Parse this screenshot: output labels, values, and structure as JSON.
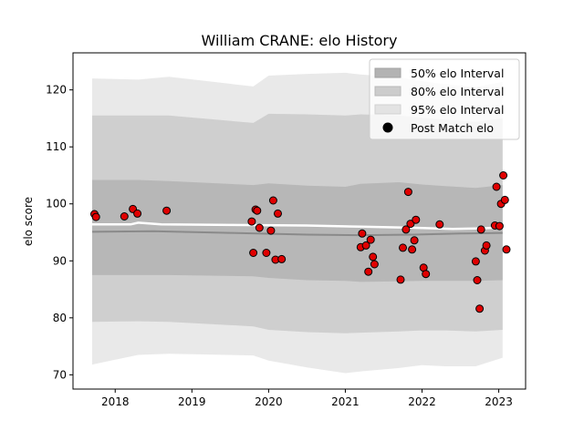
{
  "chart_data": {
    "type": "scatter",
    "title": "William CRANE: elo History",
    "xlabel": "",
    "ylabel": "elo score",
    "xlim": [
      2017.45,
      2023.35
    ],
    "ylim": [
      67.5,
      126.5
    ],
    "x_ticks": [
      2018,
      2019,
      2020,
      2021,
      2022,
      2023
    ],
    "y_ticks": [
      70,
      80,
      90,
      100,
      110,
      120
    ],
    "grid": false,
    "legend_position": "top-right",
    "legend": [
      {
        "label": "50% elo Interval",
        "color": "#b3b3b3"
      },
      {
        "label": "80% elo Interval",
        "color": "#cccccc"
      },
      {
        "label": "95% elo Interval",
        "color": "#e3e3e3"
      },
      {
        "label": "Post Match elo",
        "color": "#000000"
      }
    ],
    "bands": {
      "x": [
        2017.7,
        2018.3,
        2018.7,
        2019.8,
        2020.0,
        2020.5,
        2021.0,
        2021.2,
        2021.7,
        2022.0,
        2022.3,
        2022.7,
        2023.05
      ],
      "p95_upper": [
        122.0,
        121.8,
        122.3,
        120.6,
        122.5,
        122.8,
        123.0,
        122.7,
        122.2,
        121.5,
        121.0,
        120.5,
        121.4
      ],
      "p80_upper": [
        115.5,
        115.5,
        115.5,
        114.2,
        115.8,
        115.7,
        115.5,
        115.7,
        115.5,
        115.1,
        114.8,
        114.4,
        115.0
      ],
      "p50_upper": [
        104.2,
        104.2,
        104.0,
        103.3,
        103.6,
        103.2,
        103.0,
        103.5,
        103.8,
        103.4,
        103.1,
        102.8,
        103.3
      ],
      "p50_lower": [
        87.5,
        87.5,
        87.5,
        87.3,
        87.0,
        86.6,
        86.5,
        86.3,
        86.4,
        86.5,
        86.5,
        86.5,
        86.6
      ],
      "p80_lower": [
        79.3,
        79.4,
        79.3,
        78.5,
        77.9,
        77.5,
        77.3,
        77.4,
        77.6,
        77.8,
        77.8,
        77.6,
        77.9
      ],
      "p95_lower": [
        71.8,
        73.5,
        73.7,
        73.4,
        72.5,
        71.3,
        70.3,
        70.6,
        71.2,
        71.7,
        71.5,
        71.5,
        73.0
      ]
    },
    "median_line": {
      "x": [
        2017.7,
        2018.5,
        2019.5,
        2020.5,
        2021.2,
        2021.9,
        2022.5,
        2023.05
      ],
      "y": [
        95.1,
        95.2,
        94.9,
        94.6,
        94.5,
        94.6,
        94.8,
        94.9
      ]
    },
    "post_match_line": {
      "x": [
        2017.7,
        2018.2,
        2018.3,
        2018.6,
        2019.5,
        2020.5,
        2021.2,
        2021.9,
        2022.4,
        2022.8,
        2023.05
      ],
      "y": [
        96.4,
        96.4,
        96.7,
        96.4,
        96.3,
        96.2,
        96.0,
        95.8,
        95.6,
        95.7,
        95.9
      ]
    },
    "points": {
      "x": [
        2017.73,
        2017.75,
        2018.12,
        2018.23,
        2018.29,
        2018.67,
        2019.78,
        2019.8,
        2019.83,
        2019.85,
        2019.88,
        2019.97,
        2020.03,
        2020.06,
        2020.09,
        2020.12,
        2020.17,
        2021.2,
        2021.22,
        2021.27,
        2021.3,
        2021.33,
        2021.36,
        2021.38,
        2021.72,
        2021.75,
        2021.79,
        2021.82,
        2021.85,
        2021.87,
        2021.9,
        2021.92,
        2022.02,
        2022.05,
        2022.23,
        2022.7,
        2022.72,
        2022.75,
        2022.77,
        2022.82,
        2022.84,
        2022.95,
        2022.97,
        2023.01,
        2023.03,
        2023.06,
        2023.08,
        2023.1
      ],
      "y": [
        98.2,
        97.7,
        97.8,
        99.1,
        98.3,
        98.8,
        96.9,
        91.4,
        99.0,
        98.8,
        95.8,
        91.4,
        95.3,
        100.6,
        90.2,
        98.3,
        90.3,
        92.4,
        94.8,
        92.7,
        88.1,
        93.7,
        90.7,
        89.4,
        86.7,
        92.3,
        95.5,
        102.1,
        96.5,
        92.0,
        93.6,
        97.2,
        88.8,
        87.7,
        96.4,
        89.9,
        86.6,
        81.6,
        95.5,
        91.8,
        92.7,
        96.2,
        103.0,
        96.1,
        100.0,
        105.0,
        100.7,
        92.0
      ]
    }
  }
}
